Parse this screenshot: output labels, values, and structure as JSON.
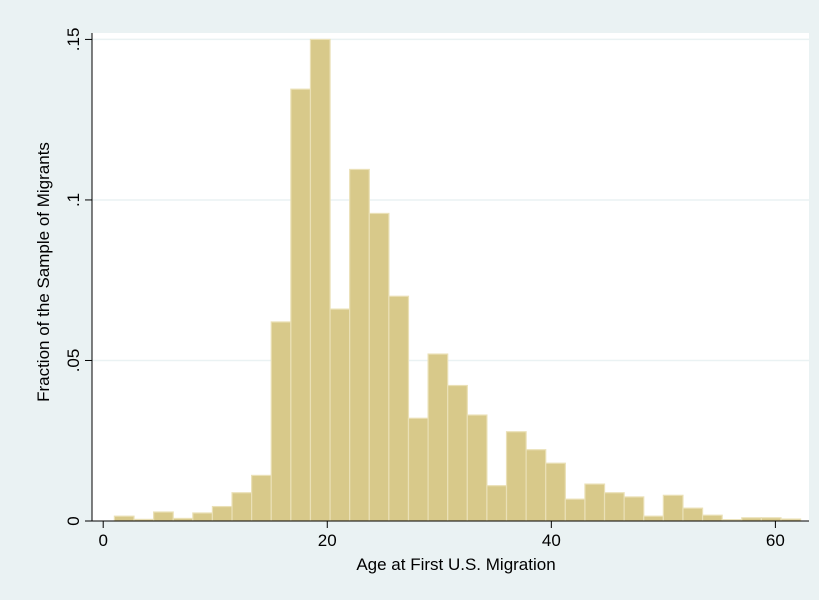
{
  "colors": {
    "outer_background": "#eaf2f3",
    "plot_background": "#ffffff",
    "bar_fill": "#d8c98a",
    "bar_stroke": "#eae0b6",
    "grid": "#eaf2f3",
    "axis": "#000000"
  },
  "chart_data": {
    "type": "bar",
    "xlabel": "Age at First U.S. Migration",
    "ylabel": "Fraction of the Sample of Migrants",
    "xlim": [
      -1,
      63
    ],
    "ylim": [
      0,
      0.152
    ],
    "grid": true,
    "x_ticks": [
      {
        "value": 0,
        "label": "0"
      },
      {
        "value": 20,
        "label": "20"
      },
      {
        "value": 40,
        "label": "40"
      },
      {
        "value": 60,
        "label": "60"
      }
    ],
    "y_ticks": [
      {
        "value": 0,
        "label": "0"
      },
      {
        "value": 0.05,
        "label": ".05"
      },
      {
        "value": 0.1,
        "label": ".1"
      },
      {
        "value": 0.15,
        "label": ".15"
      }
    ],
    "bin_width": 1.75,
    "bin_starts": [
      1.0,
      2.75,
      4.5,
      6.25,
      8.0,
      9.75,
      11.5,
      13.25,
      15.0,
      16.75,
      18.5,
      20.25,
      22.0,
      23.75,
      25.5,
      27.25,
      29.0,
      30.75,
      32.5,
      34.25,
      36.0,
      37.75,
      39.5,
      41.25,
      43.0,
      44.75,
      46.5,
      48.25,
      50.0,
      51.75,
      53.5,
      55.25,
      57.0,
      58.75,
      60.5
    ],
    "values": [
      0.0015,
      0.0005,
      0.0028,
      0.0008,
      0.0025,
      0.0045,
      0.0088,
      0.0142,
      0.062,
      0.1345,
      0.15,
      0.066,
      0.1095,
      0.0958,
      0.07,
      0.032,
      0.052,
      0.0422,
      0.033,
      0.011,
      0.0278,
      0.0222,
      0.018,
      0.0068,
      0.0115,
      0.0088,
      0.0075,
      0.0015,
      0.008,
      0.004,
      0.0018,
      0.0004,
      0.001,
      0.001,
      0.0006
    ]
  }
}
